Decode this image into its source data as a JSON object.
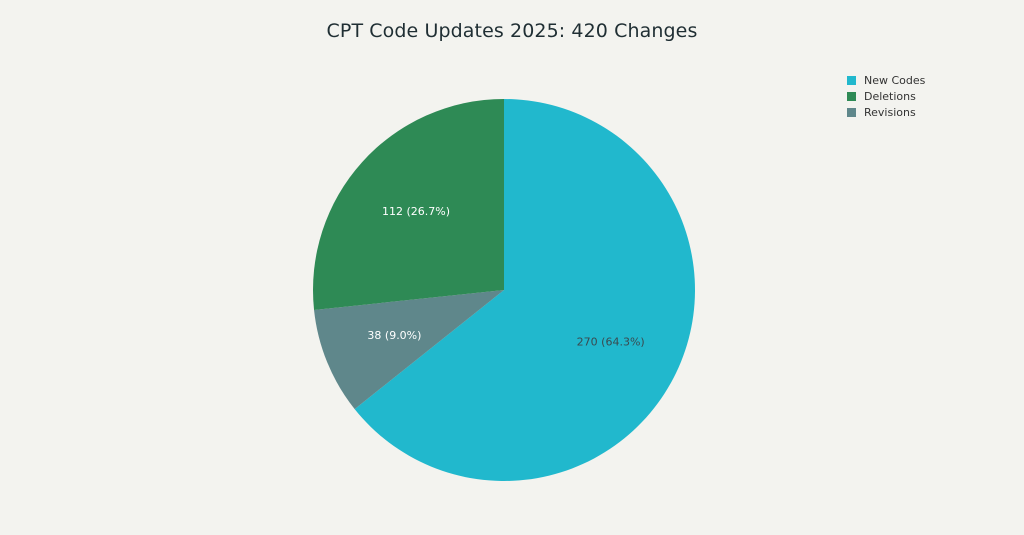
{
  "chart_data": {
    "type": "pie",
    "title": "CPT Code Updates 2025: 420 Changes",
    "slices": [
      {
        "name": "New Codes",
        "value": 270,
        "label": "270 (64.3%)",
        "color": "#21b8cd",
        "label_color": "#3a4a50"
      },
      {
        "name": "Revisions",
        "value": 38,
        "label": "38 (9.0%)",
        "color": "#5f878b",
        "label_color": "#ffffff"
      },
      {
        "name": "Deletions",
        "value": 112,
        "label": "112 (26.7%)",
        "color": "#2e8a55",
        "label_color": "#ffffff"
      }
    ],
    "legend": {
      "position": "top-right",
      "items": [
        {
          "name": "New Codes",
          "color": "#21b8cd"
        },
        {
          "name": "Deletions",
          "color": "#2e8a55"
        },
        {
          "name": "Revisions",
          "color": "#5f878b"
        }
      ]
    }
  }
}
